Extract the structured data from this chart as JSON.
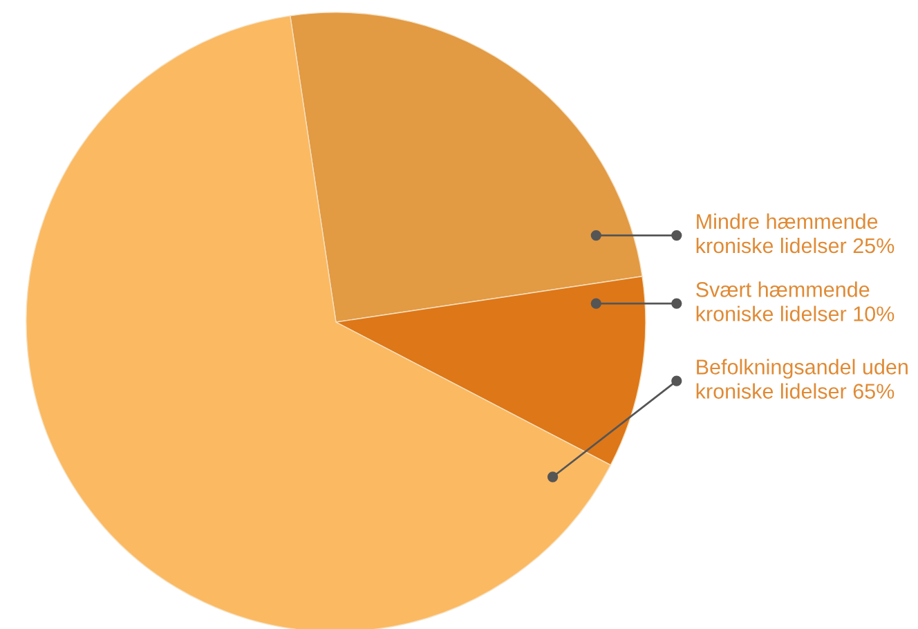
{
  "chart_data": {
    "type": "pie",
    "categories": [
      "Mindre hæmmende kroniske lidelser",
      "Svært hæmmende kroniske lidelser",
      "Befolkningsandel uden kroniske lidelser"
    ],
    "values": [
      25,
      10,
      65
    ],
    "value_labels": [
      "25%",
      "10%",
      "65%"
    ],
    "colors": [
      "#e29a43",
      "#de7718",
      "#fbb961"
    ],
    "legend": false
  }
}
